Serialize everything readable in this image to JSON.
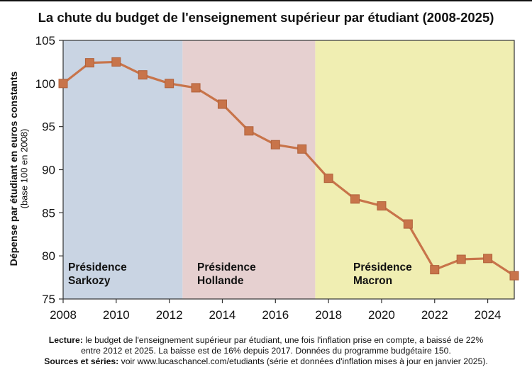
{
  "chart_data": {
    "type": "line",
    "title": "La chute du budget de l'enseignement supérieur par étudiant (2008-2025)",
    "ylabel": "Dépense par étudiant en euros constants",
    "ylabel_sub": "(base 100 en 2008)",
    "xlabel": "",
    "xlim": [
      2008,
      2025
    ],
    "ylim": [
      75,
      105
    ],
    "xticks": [
      2008,
      2010,
      2012,
      2014,
      2016,
      2018,
      2020,
      2022,
      2024
    ],
    "yticks": [
      75,
      80,
      85,
      90,
      95,
      100,
      105
    ],
    "grid": false,
    "series": [
      {
        "x": [
          2008,
          2009,
          2010,
          2011,
          2012,
          2013,
          2014,
          2015,
          2016,
          2017,
          2018,
          2019,
          2020,
          2021,
          2022,
          2023,
          2024,
          2025
        ],
        "values": [
          100,
          102.4,
          102.5,
          101.0,
          100.0,
          99.5,
          97.6,
          94.5,
          92.9,
          92.4,
          89.0,
          86.6,
          85.8,
          83.7,
          78.4,
          79.6,
          79.7,
          77.7
        ],
        "color": "#c8744a",
        "marker": "square"
      }
    ],
    "regions": [
      {
        "from": 2008,
        "to": 2012.5,
        "color": "#c9d4e3",
        "label": [
          "Présidence",
          "Sarkozy"
        ]
      },
      {
        "from": 2012.5,
        "to": 2017.5,
        "color": "#e6d0d0",
        "label": [
          "Présidence",
          "Hollande"
        ]
      },
      {
        "from": 2017.5,
        "to": 2025,
        "color": "#f0eeb2",
        "label": [
          "Présidence",
          "Macron"
        ]
      }
    ]
  },
  "notes": {
    "lecture_label": "Lecture:",
    "lecture_line1": " le budget de l'enseignement supérieur par étudiant, une fois l'inflation prise en compte, a baissé de 22%",
    "lecture_line2": "entre 2012 et 2025. La baisse est de 16% depuis 2017. Données du programme budgétaire 150.",
    "sources_label": "Sources et séries:",
    "sources_text": " voir www.lucaschancel.com/etudiants (série et données d'inflation mises à jour en janvier 2025)."
  }
}
